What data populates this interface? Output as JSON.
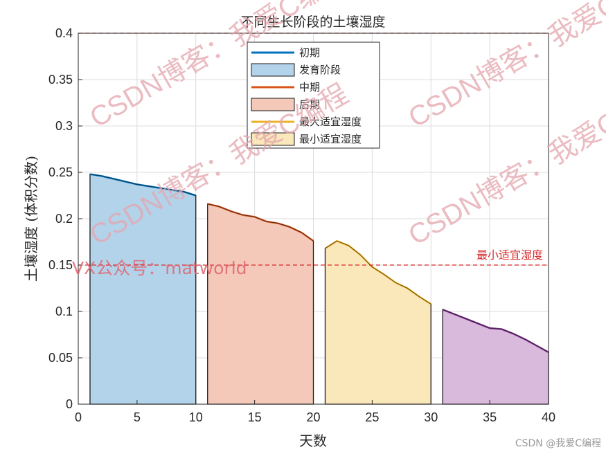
{
  "chart_data": {
    "type": "area",
    "title": "不同生长阶段的土壤湿度",
    "xlabel": "天数",
    "ylabel": "土壤湿度 (体积分数)",
    "xlim": [
      0,
      40
    ],
    "ylim": [
      0,
      0.4
    ],
    "xticks": [
      0,
      5,
      10,
      15,
      20,
      25,
      30,
      35,
      40
    ],
    "yticks": [
      0,
      0.05,
      0.1,
      0.15,
      0.2,
      0.25,
      0.3,
      0.35,
      0.4
    ],
    "grid": true,
    "legend_position": "top-center",
    "legend": [
      {
        "label": "初期",
        "kind": "line",
        "color": "#0072BD"
      },
      {
        "label": "发育阶段",
        "kind": "patch",
        "color": "#B3D3EA"
      },
      {
        "label": "中期",
        "kind": "line",
        "color": "#D95319"
      },
      {
        "label": "后期",
        "kind": "patch",
        "color": "#F4C9BA"
      },
      {
        "label": "最大适宜湿度",
        "kind": "line",
        "color": "#EDB120"
      },
      {
        "label": "最小适宜湿度",
        "kind": "patch",
        "color": "#FAE7BA"
      }
    ],
    "series": [
      {
        "fill": "#B3D3EA",
        "line": "#0072BD",
        "x": [
          1,
          2,
          3,
          4,
          5,
          6,
          7,
          8,
          9,
          10
        ],
        "y": [
          0.248,
          0.246,
          0.243,
          0.24,
          0.237,
          0.235,
          0.233,
          0.231,
          0.229,
          0.225
        ]
      },
      {
        "fill": "#F4C9BA",
        "line": "#D95319",
        "x": [
          11,
          12,
          13,
          14,
          15,
          16,
          17,
          18,
          19,
          20
        ],
        "y": [
          0.216,
          0.213,
          0.208,
          0.204,
          0.202,
          0.197,
          0.195,
          0.191,
          0.185,
          0.176
        ]
      },
      {
        "fill": "#FAE7BA",
        "line": "#EDB120",
        "x": [
          21,
          22,
          23,
          24,
          25,
          26,
          27,
          28,
          29,
          30
        ],
        "y": [
          0.168,
          0.176,
          0.171,
          0.161,
          0.148,
          0.14,
          0.131,
          0.125,
          0.116,
          0.108
        ]
      },
      {
        "fill": "#D9B9DC",
        "line": "#7E2F8E",
        "x": [
          31,
          32,
          33,
          34,
          35,
          36,
          37,
          38,
          39,
          40
        ],
        "y": [
          0.102,
          0.097,
          0.092,
          0.087,
          0.082,
          0.081,
          0.076,
          0.07,
          0.063,
          0.056
        ]
      }
    ],
    "reference_lines": [
      {
        "y": 0.4,
        "color": "#d62828",
        "label": ""
      },
      {
        "y": 0.15,
        "color": "#d62828",
        "label": "最小适宜湿度"
      }
    ]
  },
  "watermarks": {
    "csdn_repeat": "CSDN博客：我爱C编程",
    "vx": "VX公众号：matworld",
    "credit": "CSDN @我爱C编程"
  }
}
